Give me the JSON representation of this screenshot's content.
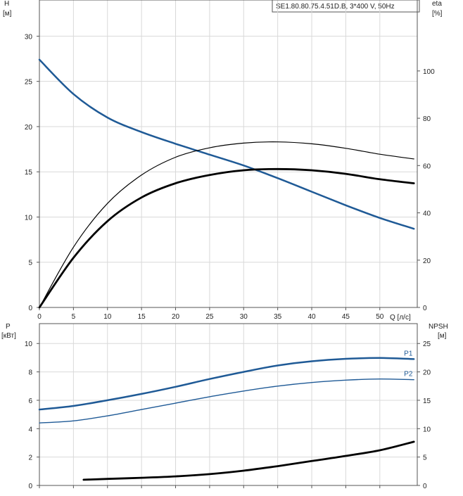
{
  "chart_data": [
    {
      "type": "line",
      "title": "SE1.80.80.75.4.51D.B, 3*400 V, 50Hz",
      "ylabel_left": "H",
      "ylabel_left_unit": "[м]",
      "ylabel_right": "eta",
      "ylabel_right_unit": "[%]",
      "xlabel": "Q [л/с]",
      "xlim": [
        0,
        55.5
      ],
      "ylim_left": [
        0,
        34
      ],
      "ylim_right": [
        0,
        130
      ],
      "x_ticks": [
        0,
        5,
        10,
        15,
        20,
        25,
        30,
        35,
        40,
        45,
        50
      ],
      "y_ticks_left": [
        0,
        5,
        10,
        15,
        20,
        25,
        30
      ],
      "y_ticks_right": [
        0,
        20,
        40,
        60,
        80,
        100
      ],
      "grid": true,
      "series": [
        {
          "axis": "left",
          "color": "#1f5a96",
          "width": 2.5,
          "x": [
            0,
            5,
            10,
            15,
            20,
            25,
            30,
            35,
            40,
            45,
            50,
            55
          ],
          "y": [
            27.4,
            23.6,
            21.0,
            19.4,
            18.1,
            16.9,
            15.7,
            14.3,
            12.8,
            11.3,
            9.9,
            8.7
          ]
        },
        {
          "axis": "right",
          "color": "#000000",
          "width": 1.2,
          "x": [
            0,
            5,
            10,
            15,
            20,
            25,
            30,
            35,
            40,
            45,
            50,
            55
          ],
          "y": [
            0,
            25.5,
            44,
            56,
            63.5,
            67.5,
            69.5,
            70,
            69.2,
            67.3,
            64.8,
            62.8
          ]
        },
        {
          "axis": "right",
          "color": "#000000",
          "width": 2.8,
          "x": [
            0,
            5,
            10,
            15,
            20,
            25,
            30,
            35,
            40,
            45,
            50,
            55
          ],
          "y": [
            0,
            21,
            36.5,
            46.5,
            52.5,
            56,
            58,
            58.5,
            58,
            56.5,
            54.2,
            52.5
          ]
        }
      ]
    },
    {
      "type": "line",
      "ylabel_left": "P",
      "ylabel_left_unit": "[кВт]",
      "ylabel_right": "NPSH",
      "ylabel_right_unit": "[м]",
      "xlim": [
        0,
        55.5
      ],
      "ylim_left": [
        0,
        11.4
      ],
      "ylim_right": [
        0,
        28.5
      ],
      "x_ticks": [
        0,
        5,
        10,
        15,
        20,
        25,
        30,
        35,
        40,
        45,
        50
      ],
      "y_ticks_left": [
        0,
        2,
        4,
        6,
        8,
        10
      ],
      "y_ticks_right": [
        0,
        5,
        10,
        15,
        20,
        25
      ],
      "grid": true,
      "series": [
        {
          "name": "P1",
          "axis": "left",
          "color": "#1f5a96",
          "width": 2.5,
          "x": [
            0,
            5,
            10,
            15,
            20,
            25,
            30,
            35,
            40,
            45,
            50,
            55
          ],
          "y": [
            5.35,
            5.6,
            6.0,
            6.45,
            6.95,
            7.5,
            8.0,
            8.45,
            8.75,
            8.92,
            8.98,
            8.9
          ]
        },
        {
          "name": "P2",
          "axis": "left",
          "color": "#1f5a96",
          "width": 1.4,
          "x": [
            0,
            5,
            10,
            15,
            20,
            25,
            30,
            35,
            40,
            45,
            50,
            55
          ],
          "y": [
            4.4,
            4.55,
            4.9,
            5.35,
            5.8,
            6.25,
            6.65,
            7.0,
            7.25,
            7.42,
            7.5,
            7.45
          ]
        },
        {
          "axis": "right",
          "color": "#000000",
          "width": 2.8,
          "x": [
            6.5,
            10,
            15,
            20,
            25,
            30,
            35,
            40,
            45,
            50,
            55
          ],
          "y": [
            1.0,
            1.15,
            1.35,
            1.6,
            2.0,
            2.6,
            3.4,
            4.3,
            5.2,
            6.2,
            7.7
          ]
        }
      ]
    }
  ]
}
